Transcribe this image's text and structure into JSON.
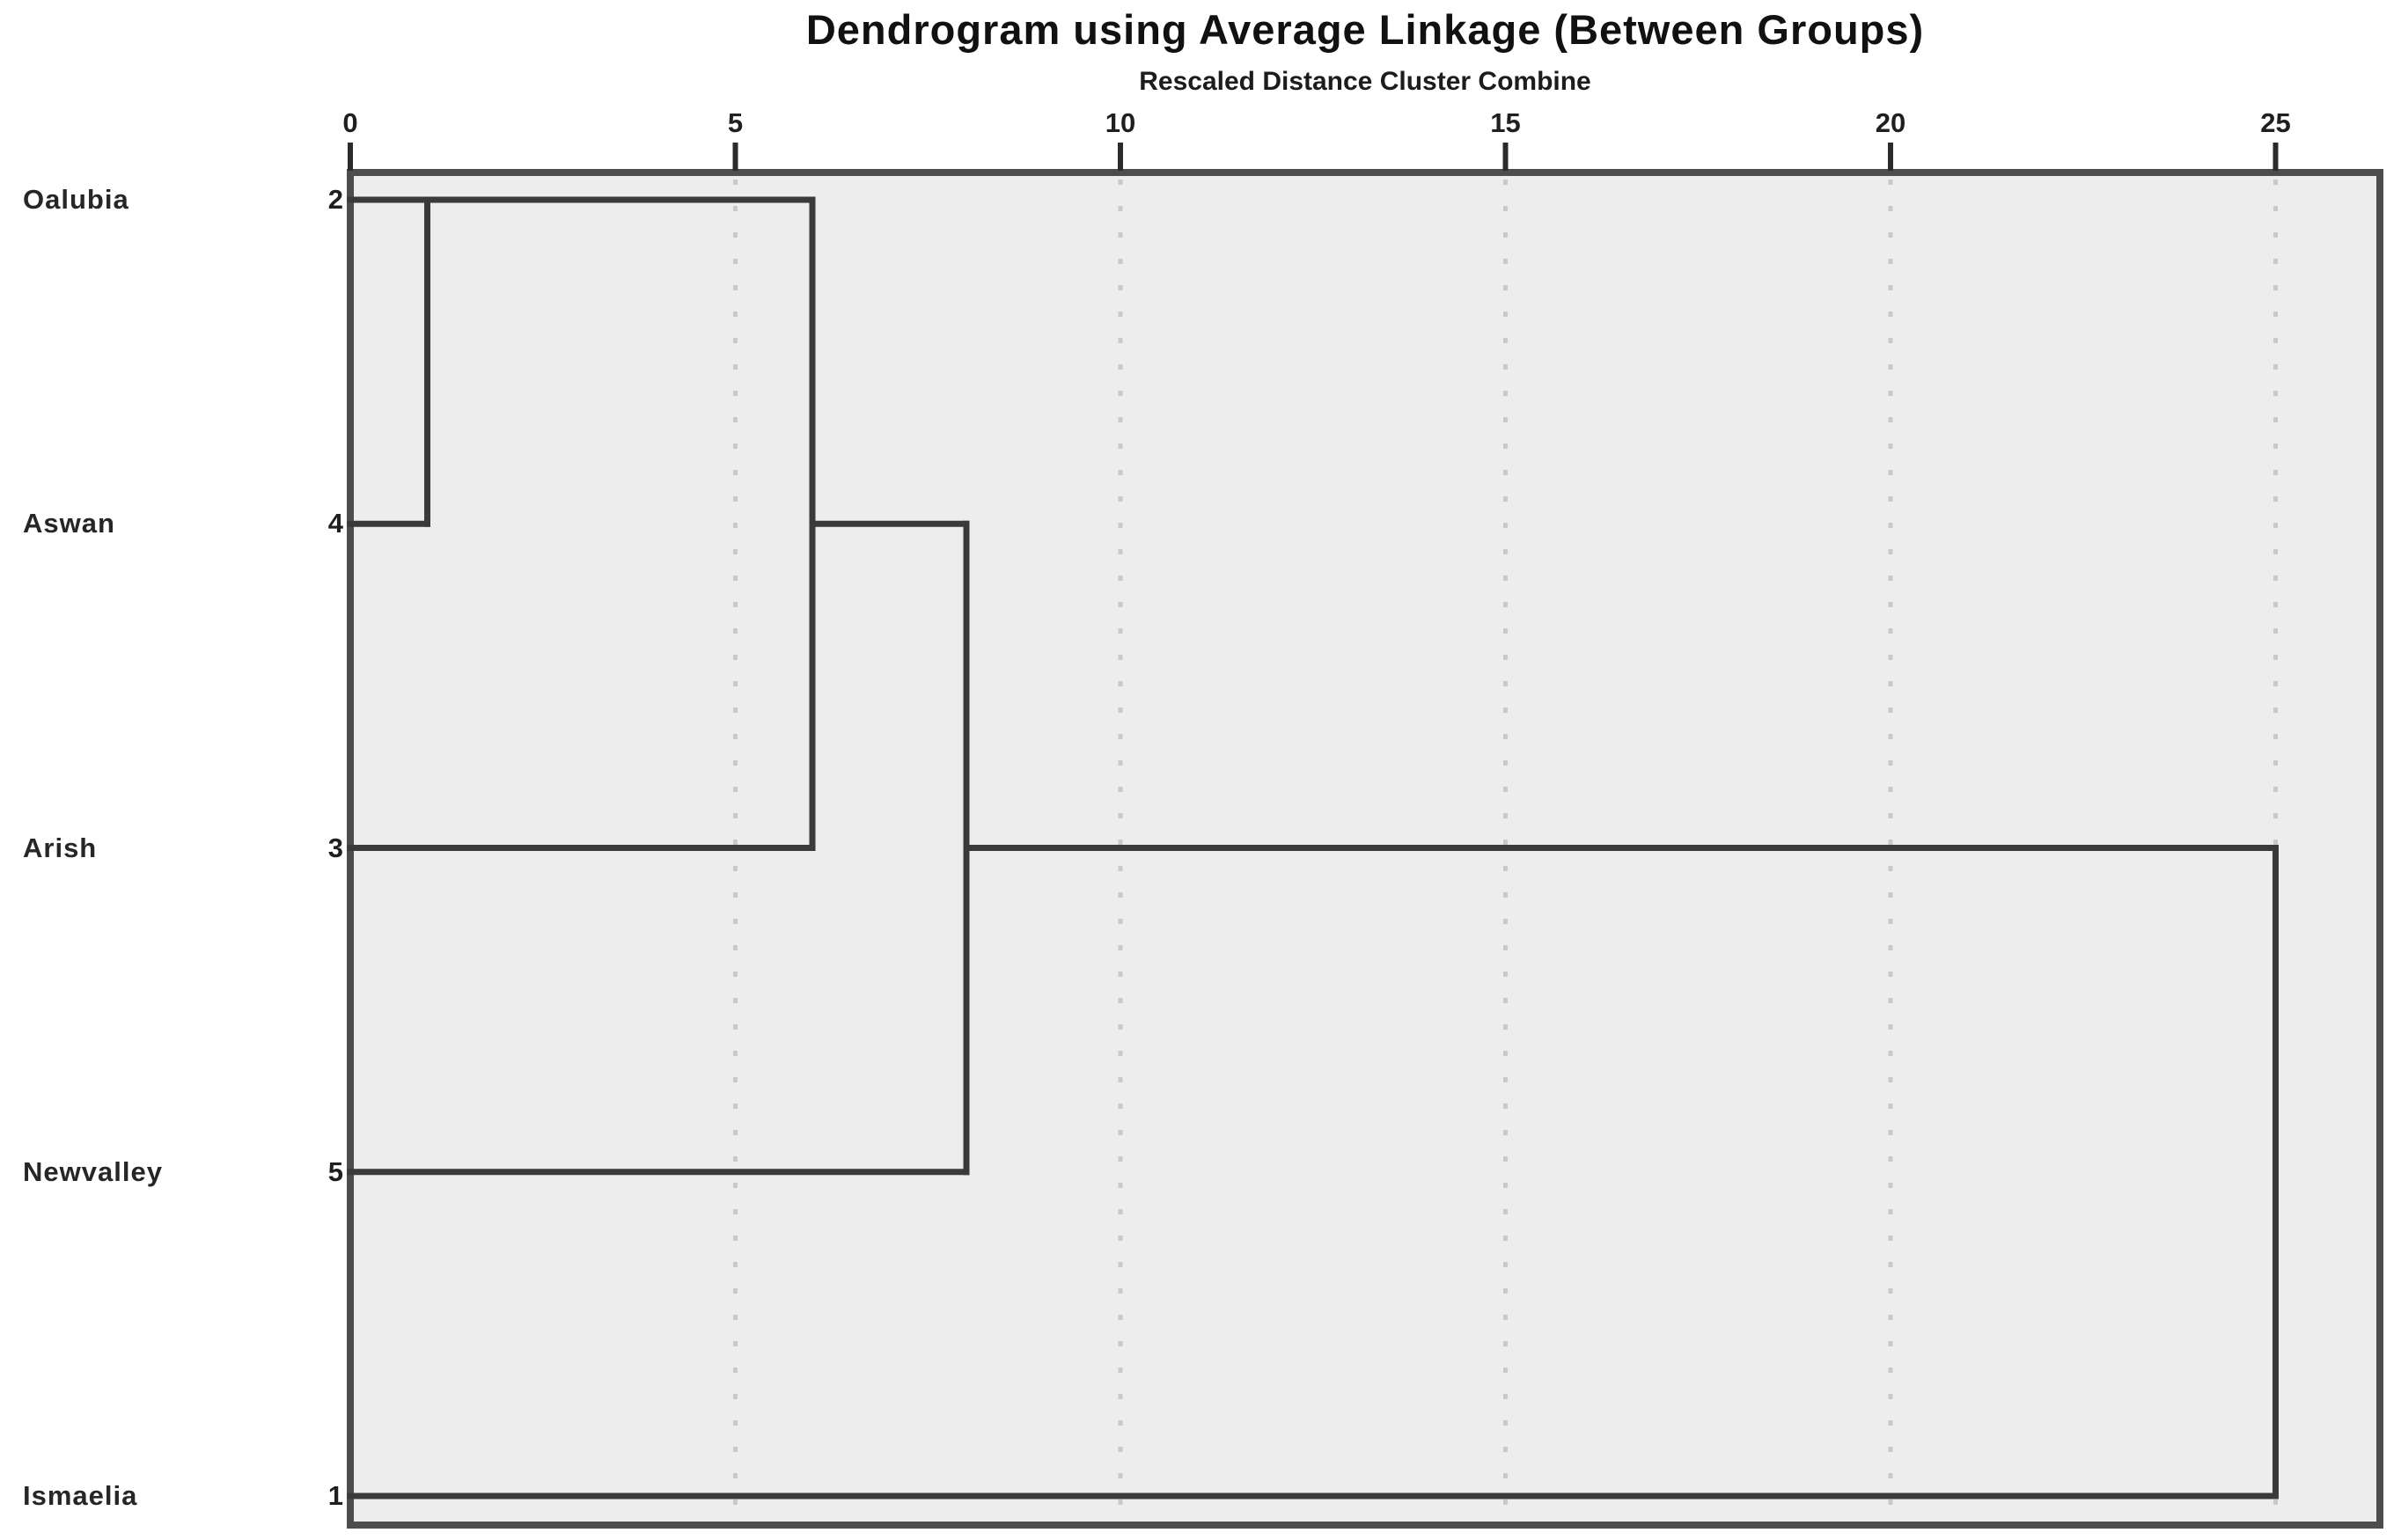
{
  "title": "Dendrogram using Average Linkage (Between Groups)",
  "subtitle": "Rescaled Distance Cluster Combine",
  "colors": {
    "line": "#3a3a3a",
    "frame": "#4d4d4d",
    "plot_background": "#ededed",
    "grid_dot": "#c9c9c9",
    "tick": "#2b2b2b",
    "text": "#1f1f1f"
  },
  "chart_data": {
    "type": "dendrogram",
    "orientation": "horizontal",
    "title": "Dendrogram using Average Linkage (Between Groups)",
    "subtitle": "Rescaled Distance Cluster Combine",
    "axis": {
      "position": "top",
      "ticks": [
        0,
        5,
        10,
        15,
        20,
        25
      ],
      "range": [
        0,
        26.3
      ],
      "grid": "dotted-vertical"
    },
    "leaves": [
      {
        "label": "Oalubia",
        "case_number": "2"
      },
      {
        "label": "Aswan",
        "case_number": "4"
      },
      {
        "label": "Arish",
        "case_number": "3"
      },
      {
        "label": "Newvalley",
        "case_number": "5"
      },
      {
        "label": "Ismaelia",
        "case_number": "1"
      }
    ],
    "merges": [
      {
        "members": [
          "Oalubia",
          "Aswan"
        ],
        "distance": 1
      },
      {
        "members": [
          "Oalubia",
          "Aswan",
          "Arish"
        ],
        "distance": 6
      },
      {
        "members": [
          "Oalubia",
          "Aswan",
          "Arish",
          "Newvalley"
        ],
        "distance": 8
      },
      {
        "members": [
          "Oalubia",
          "Aswan",
          "Arish",
          "Newvalley",
          "Ismaelia"
        ],
        "distance": 25
      }
    ],
    "segments": [
      {
        "type": "h",
        "row": 0,
        "from": 0,
        "to": 6
      },
      {
        "type": "h",
        "row": 1,
        "from": 0,
        "to": 1
      },
      {
        "type": "v",
        "at": 1,
        "rowFrom": 0,
        "rowTo": 1
      },
      {
        "type": "v",
        "at": 6,
        "rowFrom": 0,
        "rowTo": 2
      },
      {
        "type": "h",
        "row": 2,
        "from": 0,
        "to": 6
      },
      {
        "type": "h",
        "row": 1,
        "from": 6,
        "to": 8
      },
      {
        "type": "v",
        "at": 8,
        "rowFrom": 1,
        "rowTo": 3
      },
      {
        "type": "h",
        "row": 3,
        "from": 0,
        "to": 8
      },
      {
        "type": "h",
        "row": 2,
        "from": 8,
        "to": 25
      },
      {
        "type": "v",
        "at": 25,
        "rowFrom": 2,
        "rowTo": 4
      },
      {
        "type": "h",
        "row": 4,
        "from": 0,
        "to": 25
      }
    ]
  }
}
